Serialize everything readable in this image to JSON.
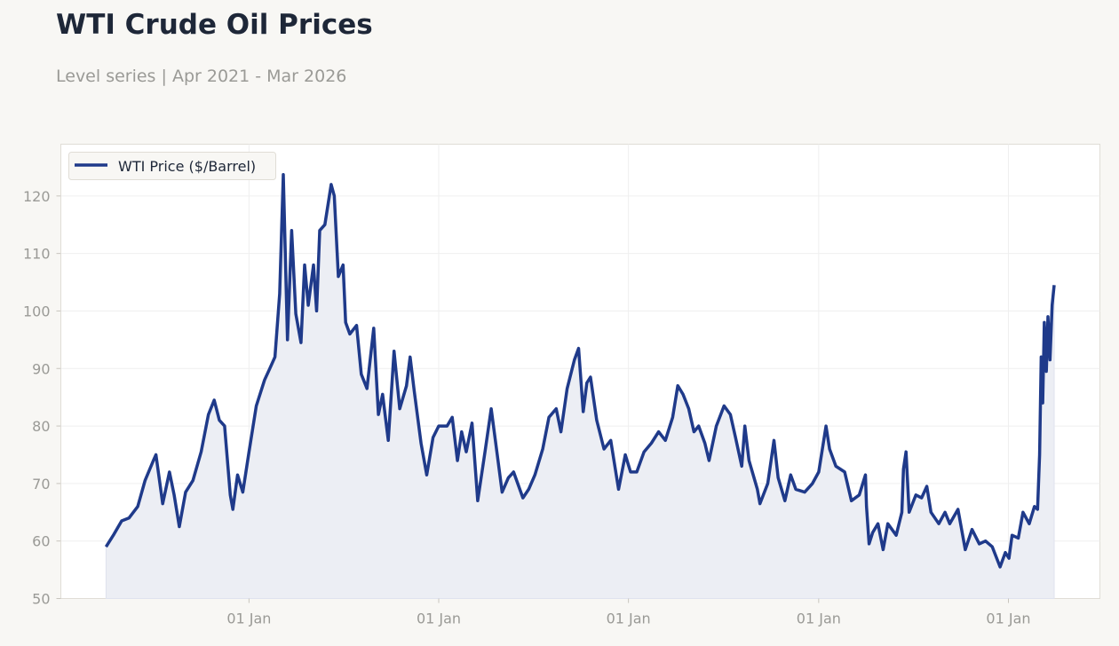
{
  "header": {
    "title": "WTI Crude Oil Prices",
    "subtitle": "Level series | Apr 2021 - Mar 2026"
  },
  "chart_data": {
    "type": "area",
    "title": "WTI Crude Oil Prices",
    "subtitle": "Level series | Apr 2021 - Mar 2026",
    "xlabel": "",
    "ylabel": "",
    "ylim": [
      50,
      129
    ],
    "xlim": [
      "2021-01-04",
      "2026-06-26"
    ],
    "yticks": [
      50,
      60,
      70,
      80,
      90,
      100,
      110,
      120
    ],
    "xticks": [
      {
        "date": "2022-01-01",
        "label": "01 Jan"
      },
      {
        "date": "2023-01-01",
        "label": "01 Jan"
      },
      {
        "date": "2024-01-01",
        "label": "01 Jan"
      },
      {
        "date": "2025-01-01",
        "label": "01 Jan"
      },
      {
        "date": "2026-01-01",
        "label": "01 Jan"
      }
    ],
    "grid": true,
    "legend_position": "top-left",
    "colors": {
      "line": "#1f3a8a",
      "fill": "#eceef4"
    },
    "series": [
      {
        "name": "WTI Price ($/Barrel)",
        "points": [
          [
            "2021-04-01",
            59
          ],
          [
            "2021-04-15",
            61
          ],
          [
            "2021-05-01",
            63.5
          ],
          [
            "2021-05-15",
            64
          ],
          [
            "2021-06-01",
            66
          ],
          [
            "2021-06-15",
            70.5
          ],
          [
            "2021-07-01",
            74
          ],
          [
            "2021-07-06",
            75
          ],
          [
            "2021-07-19",
            66.5
          ],
          [
            "2021-08-01",
            72
          ],
          [
            "2021-08-10",
            68
          ],
          [
            "2021-08-20",
            62.5
          ],
          [
            "2021-09-01",
            68.5
          ],
          [
            "2021-09-15",
            70.5
          ],
          [
            "2021-10-01",
            75.5
          ],
          [
            "2021-10-15",
            82
          ],
          [
            "2021-10-26",
            84.5
          ],
          [
            "2021-11-05",
            81
          ],
          [
            "2021-11-15",
            80
          ],
          [
            "2021-11-26",
            68
          ],
          [
            "2021-12-01",
            65.5
          ],
          [
            "2021-12-10",
            71.5
          ],
          [
            "2021-12-20",
            68.5
          ],
          [
            "2022-01-01",
            75.5
          ],
          [
            "2022-01-15",
            83.5
          ],
          [
            "2022-01-31",
            88
          ],
          [
            "2022-02-10",
            90
          ],
          [
            "2022-02-20",
            92
          ],
          [
            "2022-03-01",
            103
          ],
          [
            "2022-03-08",
            123.7
          ],
          [
            "2022-03-16",
            95
          ],
          [
            "2022-03-24",
            114
          ],
          [
            "2022-04-01",
            99.5
          ],
          [
            "2022-04-11",
            94.5
          ],
          [
            "2022-04-18",
            108
          ],
          [
            "2022-04-25",
            101
          ],
          [
            "2022-05-05",
            108
          ],
          [
            "2022-05-11",
            100
          ],
          [
            "2022-05-17",
            114
          ],
          [
            "2022-05-27",
            115
          ],
          [
            "2022-06-08",
            122
          ],
          [
            "2022-06-14",
            120
          ],
          [
            "2022-06-22",
            106
          ],
          [
            "2022-07-01",
            108
          ],
          [
            "2022-07-06",
            98
          ],
          [
            "2022-07-14",
            96
          ],
          [
            "2022-07-27",
            97.5
          ],
          [
            "2022-08-05",
            89
          ],
          [
            "2022-08-16",
            86.5
          ],
          [
            "2022-08-29",
            97
          ],
          [
            "2022-09-07",
            82
          ],
          [
            "2022-09-15",
            85.5
          ],
          [
            "2022-09-26",
            77.5
          ],
          [
            "2022-10-07",
            93
          ],
          [
            "2022-10-18",
            83
          ],
          [
            "2022-10-31",
            87
          ],
          [
            "2022-11-07",
            92
          ],
          [
            "2022-11-15",
            86
          ],
          [
            "2022-11-28",
            77
          ],
          [
            "2022-12-09",
            71.5
          ],
          [
            "2022-12-21",
            78
          ],
          [
            "2023-01-01",
            80
          ],
          [
            "2023-01-17",
            80
          ],
          [
            "2023-01-27",
            81.5
          ],
          [
            "2023-02-06",
            74
          ],
          [
            "2023-02-14",
            79
          ],
          [
            "2023-02-23",
            75.5
          ],
          [
            "2023-03-06",
            80.5
          ],
          [
            "2023-03-17",
            67
          ],
          [
            "2023-03-31",
            75.5
          ],
          [
            "2023-04-12",
            83
          ],
          [
            "2023-04-20",
            77.5
          ],
          [
            "2023-05-03",
            68.5
          ],
          [
            "2023-05-15",
            71
          ],
          [
            "2023-05-25",
            72
          ],
          [
            "2023-06-12",
            67.5
          ],
          [
            "2023-06-23",
            69
          ],
          [
            "2023-07-05",
            71.5
          ],
          [
            "2023-07-20",
            76
          ],
          [
            "2023-08-01",
            81.5
          ],
          [
            "2023-08-15",
            83
          ],
          [
            "2023-08-24",
            79
          ],
          [
            "2023-09-05",
            86.5
          ],
          [
            "2023-09-19",
            91.5
          ],
          [
            "2023-09-27",
            93.5
          ],
          [
            "2023-10-06",
            82.5
          ],
          [
            "2023-10-13",
            87.5
          ],
          [
            "2023-10-20",
            88.5
          ],
          [
            "2023-11-01",
            81
          ],
          [
            "2023-11-15",
            76
          ],
          [
            "2023-11-28",
            77.5
          ],
          [
            "2023-12-13",
            69
          ],
          [
            "2023-12-26",
            75
          ],
          [
            "2024-01-05",
            72
          ],
          [
            "2024-01-17",
            72
          ],
          [
            "2024-01-31",
            75.5
          ],
          [
            "2024-02-14",
            77
          ],
          [
            "2024-02-28",
            79
          ],
          [
            "2024-03-12",
            77.5
          ],
          [
            "2024-03-26",
            81.5
          ],
          [
            "2024-04-05",
            87
          ],
          [
            "2024-04-15",
            85.5
          ],
          [
            "2024-04-26",
            83
          ],
          [
            "2024-05-06",
            79
          ],
          [
            "2024-05-15",
            80
          ],
          [
            "2024-05-27",
            77
          ],
          [
            "2024-06-04",
            74
          ],
          [
            "2024-06-18",
            80
          ],
          [
            "2024-07-03",
            83.5
          ],
          [
            "2024-07-15",
            82
          ],
          [
            "2024-07-25",
            78
          ],
          [
            "2024-08-06",
            73
          ],
          [
            "2024-08-12",
            80
          ],
          [
            "2024-08-20",
            74
          ],
          [
            "2024-09-05",
            69
          ],
          [
            "2024-09-10",
            66.5
          ],
          [
            "2024-09-25",
            70
          ],
          [
            "2024-10-07",
            77.5
          ],
          [
            "2024-10-15",
            71
          ],
          [
            "2024-10-28",
            67
          ],
          [
            "2024-11-08",
            71.5
          ],
          [
            "2024-11-18",
            69
          ],
          [
            "2024-12-05",
            68.5
          ],
          [
            "2024-12-20",
            70
          ],
          [
            "2025-01-01",
            72
          ],
          [
            "2025-01-15",
            80
          ],
          [
            "2025-01-22",
            76
          ],
          [
            "2025-02-03",
            73
          ],
          [
            "2025-02-20",
            72
          ],
          [
            "2025-03-05",
            67
          ],
          [
            "2025-03-20",
            68
          ],
          [
            "2025-04-01",
            71.5
          ],
          [
            "2025-04-03",
            66
          ],
          [
            "2025-04-08",
            59.5
          ],
          [
            "2025-04-15",
            61.5
          ],
          [
            "2025-04-25",
            63
          ],
          [
            "2025-05-05",
            58.5
          ],
          [
            "2025-05-14",
            63
          ],
          [
            "2025-05-30",
            61
          ],
          [
            "2025-06-10",
            65
          ],
          [
            "2025-06-13",
            72.5
          ],
          [
            "2025-06-18",
            75.5
          ],
          [
            "2025-06-24",
            65
          ],
          [
            "2025-07-07",
            68
          ],
          [
            "2025-07-18",
            67.5
          ],
          [
            "2025-07-28",
            69.5
          ],
          [
            "2025-08-05",
            65
          ],
          [
            "2025-08-20",
            63
          ],
          [
            "2025-09-01",
            65
          ],
          [
            "2025-09-10",
            63
          ],
          [
            "2025-09-26",
            65.5
          ],
          [
            "2025-10-10",
            58.5
          ],
          [
            "2025-10-23",
            62
          ],
          [
            "2025-11-06",
            59.5
          ],
          [
            "2025-11-18",
            60
          ],
          [
            "2025-12-01",
            59
          ],
          [
            "2025-12-16",
            55.5
          ],
          [
            "2025-12-26",
            58
          ],
          [
            "2026-01-02",
            57
          ],
          [
            "2026-01-08",
            61
          ],
          [
            "2026-01-20",
            60.5
          ],
          [
            "2026-01-29",
            65
          ],
          [
            "2026-02-10",
            63
          ],
          [
            "2026-02-20",
            66
          ],
          [
            "2026-02-26",
            65.5
          ],
          [
            "2026-03-02",
            75
          ],
          [
            "2026-03-05",
            92
          ],
          [
            "2026-03-08",
            84
          ],
          [
            "2026-03-11",
            98
          ],
          [
            "2026-03-15",
            89.5
          ],
          [
            "2026-03-18",
            99
          ],
          [
            "2026-03-22",
            91.5
          ],
          [
            "2026-03-26",
            101
          ],
          [
            "2026-03-30",
            104.5
          ]
        ]
      }
    ]
  }
}
